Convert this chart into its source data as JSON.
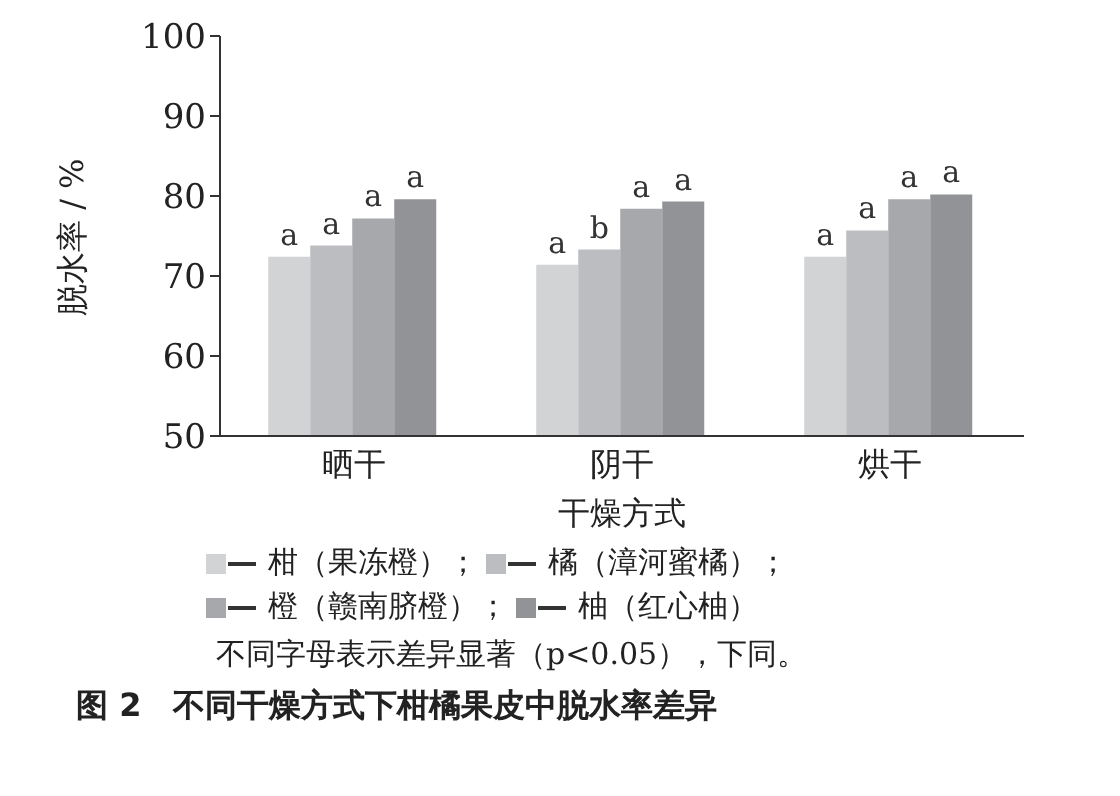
{
  "chart_data": {
    "type": "bar",
    "title": "图 2　不同干燥方式下柑橘果皮中脱水率差异",
    "xlabel": "干燥方式",
    "ylabel": "脱水率 / %",
    "categories": [
      "晒干",
      "阴干",
      "烘干"
    ],
    "series": [
      {
        "name": "柑（果冻橙）；",
        "color": "#d2d3d5",
        "values": [
          72.4,
          71.4,
          72.4
        ],
        "value_labels": [
          "a",
          "a",
          "a"
        ]
      },
      {
        "name": "橘（漳河蜜橘）；",
        "color": "#bcbdc0",
        "values": [
          73.8,
          73.3,
          75.7
        ],
        "value_labels": [
          "a",
          "b",
          "a"
        ]
      },
      {
        "name": "橙（赣南脐橙）；",
        "color": "#a7a8ab",
        "values": [
          77.2,
          78.4,
          79.6
        ],
        "value_labels": [
          "a",
          "a",
          "a"
        ]
      },
      {
        "name": "柚（红心柚）",
        "color": "#929396",
        "values": [
          79.6,
          79.3,
          80.2
        ],
        "value_labels": [
          "a",
          "a",
          "a"
        ]
      }
    ],
    "ylim": [
      50,
      100
    ],
    "yticks": [
      50,
      60,
      70,
      80,
      90,
      100
    ],
    "legend": "bottom",
    "annotations": [
      "不同字母表示差异显著（p<0.05），下同。"
    ]
  }
}
